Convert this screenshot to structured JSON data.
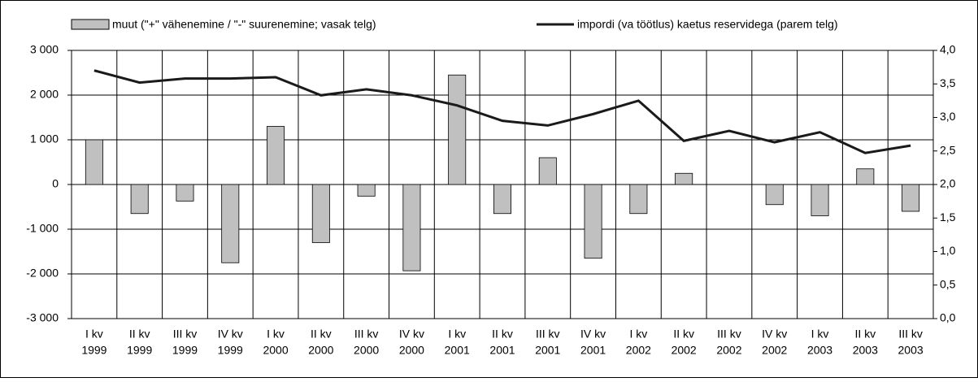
{
  "chart_data": {
    "type": "bar_line",
    "categories": [
      [
        "I kv",
        "1999"
      ],
      [
        "II kv",
        "1999"
      ],
      [
        "III kv",
        "1999"
      ],
      [
        "IV kv",
        "1999"
      ],
      [
        "I kv",
        "2000"
      ],
      [
        "II kv",
        "2000"
      ],
      [
        "III kv",
        "2000"
      ],
      [
        "IV kv",
        "2000"
      ],
      [
        "I kv",
        "2001"
      ],
      [
        "II kv",
        "2001"
      ],
      [
        "III kv",
        "2001"
      ],
      [
        "IV kv",
        "2001"
      ],
      [
        "I kv",
        "2002"
      ],
      [
        "II kv",
        "2002"
      ],
      [
        "III kv",
        "2002"
      ],
      [
        "IV kv",
        "2002"
      ],
      [
        "I kv",
        "2003"
      ],
      [
        "II kv",
        "2003"
      ],
      [
        "III kv",
        "2003"
      ]
    ],
    "series": [
      {
        "name": "muut (\"+\" vähenemine / \"-\" suurenemine; vasak telg)",
        "type": "bar",
        "color": "#c0c0c0",
        "values": [
          1000,
          -650,
          -370,
          -1750,
          1300,
          -1300,
          -260,
          -1930,
          2450,
          -650,
          600,
          -1650,
          -650,
          250,
          0,
          -450,
          -700,
          350,
          -600
        ]
      },
      {
        "name": "impordi (va töötlus) kaetus reservidega (parem telg)",
        "type": "line",
        "axis": "y2",
        "color": "#1a1a1a",
        "values": [
          3.7,
          3.52,
          3.58,
          3.58,
          3.6,
          3.33,
          3.42,
          3.33,
          3.18,
          2.95,
          2.88,
          3.05,
          3.25,
          2.65,
          2.8,
          2.63,
          2.78,
          2.47,
          2.58
        ]
      }
    ],
    "ylim": [
      -3000,
      3000
    ],
    "yticks": [
      {
        "value": -3000,
        "label": "-3 000"
      },
      {
        "value": -2000,
        "label": "-2 000"
      },
      {
        "value": -1000,
        "label": "-1 000"
      },
      0,
      {
        "value": 1000,
        "label": "1 000"
      },
      {
        "value": 2000,
        "label": "2 000"
      },
      {
        "value": 3000,
        "label": "3 000"
      }
    ],
    "y2lim": [
      0,
      4
    ],
    "y2ticks": [
      {
        "value": 0,
        "label": "0,0"
      },
      {
        "value": 0.5,
        "label": "0,5"
      },
      {
        "value": 1,
        "label": "1,0"
      },
      {
        "value": 1.5,
        "label": "1,5"
      },
      {
        "value": 2,
        "label": "2,0"
      },
      {
        "value": 2.5,
        "label": "2,5"
      },
      {
        "value": 3,
        "label": "3,0"
      },
      {
        "value": 3.5,
        "label": "3,5"
      },
      {
        "value": 4,
        "label": "4,0"
      }
    ],
    "grid": true
  }
}
